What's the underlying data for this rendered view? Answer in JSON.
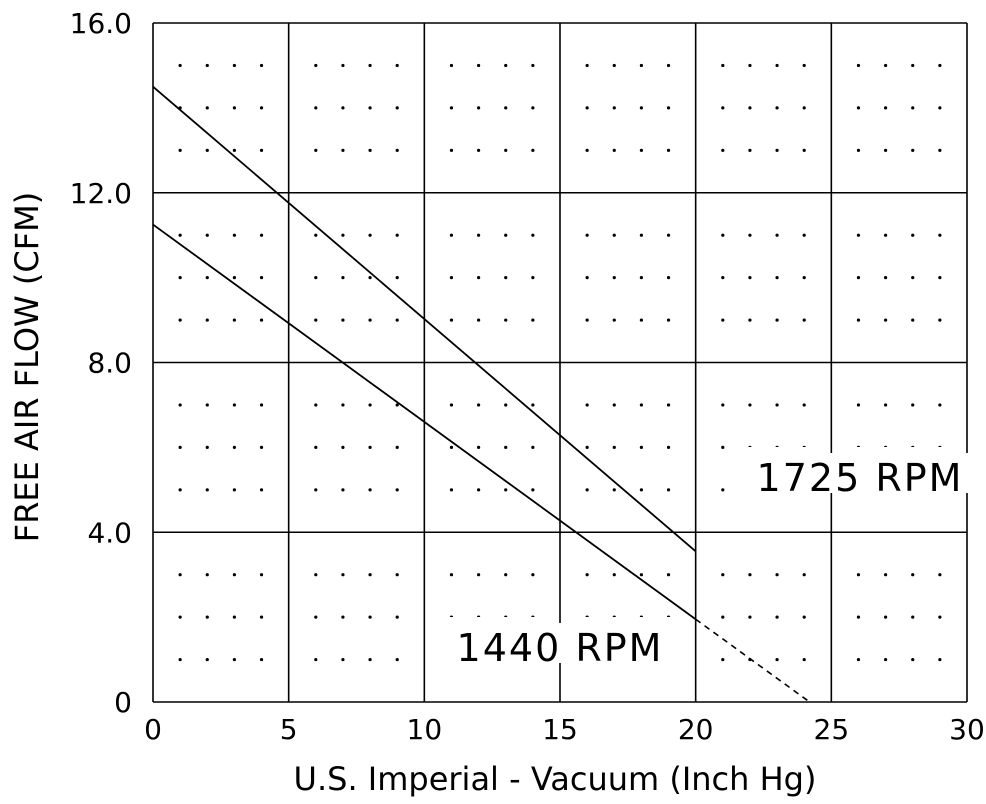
{
  "chart_data": {
    "type": "line",
    "title": "",
    "xlabel": "U.S. Imperial - Vacuum (Inch Hg)",
    "ylabel": "FREE AIR FLOW (CFM)",
    "xlim": [
      0,
      30
    ],
    "ylim": [
      0,
      16
    ],
    "x_ticks": [
      0,
      5,
      10,
      15,
      20,
      25,
      30
    ],
    "x_tick_labels": [
      "0",
      "5",
      "10",
      "15",
      "20",
      "25",
      "30"
    ],
    "y_ticks": [
      0,
      4,
      8,
      12,
      16
    ],
    "y_tick_labels": [
      "0",
      "4.0",
      "8.0",
      "12.0",
      "16.0"
    ],
    "grid": true,
    "series": [
      {
        "name": "1725 RPM",
        "x": [
          0,
          20
        ],
        "y": [
          14.5,
          3.55
        ]
      },
      {
        "name": "1440 RPM",
        "x": [
          0,
          20
        ],
        "y": [
          11.25,
          1.95
        ],
        "extension": {
          "x": [
            20,
            24.2
          ],
          "y": [
            1.95,
            0
          ],
          "style": "dashed"
        }
      }
    ]
  }
}
